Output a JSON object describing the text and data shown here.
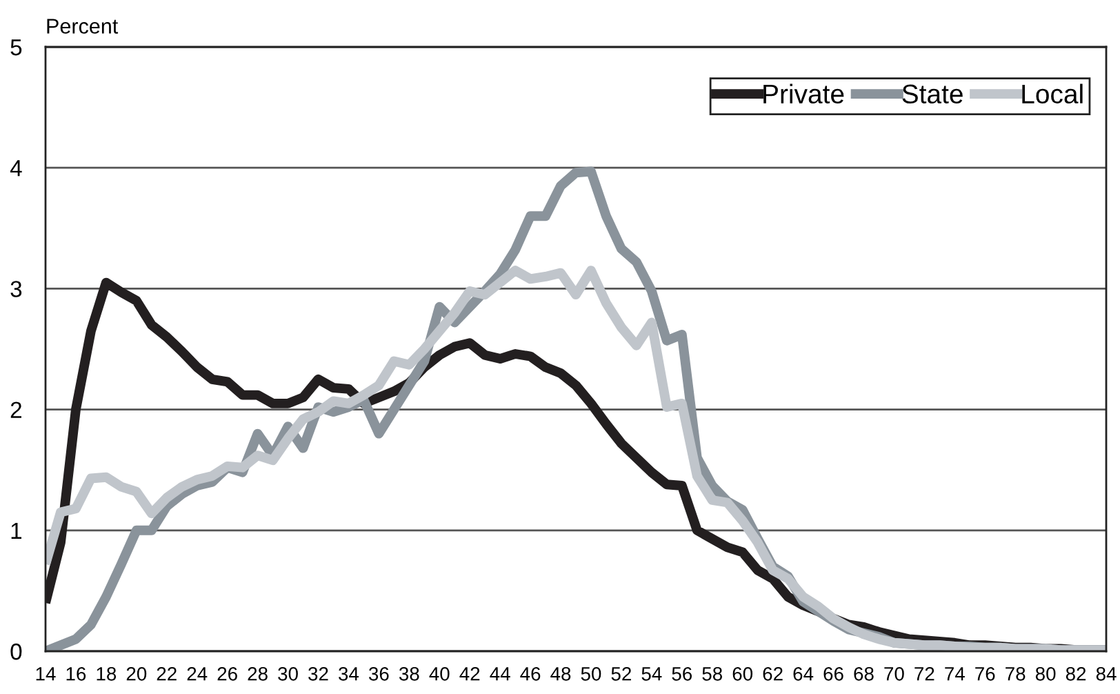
{
  "chart_data": {
    "type": "line",
    "ylabel": "Percent",
    "x": [
      14,
      15,
      16,
      17,
      18,
      19,
      20,
      21,
      22,
      23,
      24,
      25,
      26,
      27,
      28,
      29,
      30,
      31,
      32,
      33,
      34,
      35,
      36,
      37,
      38,
      39,
      40,
      41,
      42,
      43,
      44,
      45,
      46,
      47,
      48,
      49,
      50,
      51,
      52,
      53,
      54,
      55,
      56,
      57,
      58,
      59,
      60,
      61,
      62,
      63,
      64,
      65,
      66,
      67,
      68,
      69,
      70,
      71,
      72,
      73,
      74,
      75,
      76,
      77,
      78,
      79,
      80,
      81,
      82,
      83,
      84
    ],
    "xlim": [
      14,
      84
    ],
    "xticks": [
      14,
      16,
      18,
      20,
      22,
      24,
      26,
      28,
      30,
      32,
      34,
      36,
      38,
      40,
      42,
      44,
      46,
      48,
      50,
      52,
      54,
      56,
      58,
      60,
      62,
      64,
      66,
      68,
      70,
      72,
      74,
      76,
      78,
      80,
      82,
      84
    ],
    "ylim": [
      0,
      5
    ],
    "yticks": [
      0,
      1,
      2,
      3,
      4,
      5
    ],
    "grid": "y",
    "legend": "top right",
    "marker": "none",
    "line_style": "solid",
    "series": [
      {
        "name": "Private",
        "color": "#231f20",
        "values": [
          0.4,
          0.9,
          2.0,
          2.65,
          3.05,
          2.97,
          2.9,
          2.7,
          2.6,
          2.48,
          2.35,
          2.25,
          2.23,
          2.12,
          2.12,
          2.05,
          2.05,
          2.1,
          2.25,
          2.18,
          2.17,
          2.05,
          2.1,
          2.15,
          2.22,
          2.35,
          2.45,
          2.52,
          2.55,
          2.45,
          2.42,
          2.46,
          2.44,
          2.35,
          2.3,
          2.2,
          2.05,
          1.88,
          1.72,
          1.6,
          1.48,
          1.38,
          1.37,
          1.0,
          0.93,
          0.86,
          0.82,
          0.67,
          0.6,
          0.45,
          0.38,
          0.33,
          0.27,
          0.22,
          0.2,
          0.16,
          0.13,
          0.1,
          0.09,
          0.08,
          0.07,
          0.05,
          0.05,
          0.04,
          0.03,
          0.03,
          0.02,
          0.02,
          0.01,
          0.01,
          0.01
        ]
      },
      {
        "name": "State",
        "color": "#8a939b",
        "values": [
          0.0,
          0.05,
          0.1,
          0.22,
          0.45,
          0.72,
          1.0,
          1.0,
          1.2,
          1.3,
          1.37,
          1.4,
          1.52,
          1.48,
          1.8,
          1.62,
          1.86,
          1.68,
          2.02,
          1.98,
          2.02,
          2.08,
          1.8,
          2.0,
          2.2,
          2.4,
          2.85,
          2.72,
          2.85,
          2.98,
          3.12,
          3.32,
          3.6,
          3.6,
          3.85,
          3.96,
          3.97,
          3.6,
          3.33,
          3.22,
          2.98,
          2.57,
          2.62,
          1.6,
          1.37,
          1.24,
          1.17,
          0.93,
          0.7,
          0.62,
          0.41,
          0.33,
          0.25,
          0.18,
          0.15,
          0.12,
          0.07,
          0.06,
          0.05,
          0.05,
          0.04,
          0.04,
          0.03,
          0.03,
          0.02,
          0.02,
          0.02,
          0.01,
          0.01,
          0.01,
          0.01
        ]
      },
      {
        "name": "Local",
        "color": "#c0c5cb",
        "values": [
          0.72,
          1.15,
          1.18,
          1.43,
          1.44,
          1.36,
          1.32,
          1.14,
          1.27,
          1.36,
          1.42,
          1.45,
          1.53,
          1.52,
          1.62,
          1.58,
          1.76,
          1.92,
          1.98,
          2.07,
          2.05,
          2.12,
          2.2,
          2.4,
          2.37,
          2.5,
          2.65,
          2.8,
          2.98,
          2.95,
          3.05,
          3.15,
          3.08,
          3.1,
          3.13,
          2.95,
          3.15,
          2.88,
          2.68,
          2.53,
          2.72,
          2.02,
          2.05,
          1.45,
          1.25,
          1.23,
          1.08,
          0.9,
          0.67,
          0.6,
          0.45,
          0.37,
          0.27,
          0.2,
          0.14,
          0.1,
          0.07,
          0.06,
          0.05,
          0.05,
          0.04,
          0.03,
          0.03,
          0.03,
          0.02,
          0.02,
          0.02,
          0.01,
          0.01,
          0.01,
          0.01
        ]
      }
    ]
  }
}
